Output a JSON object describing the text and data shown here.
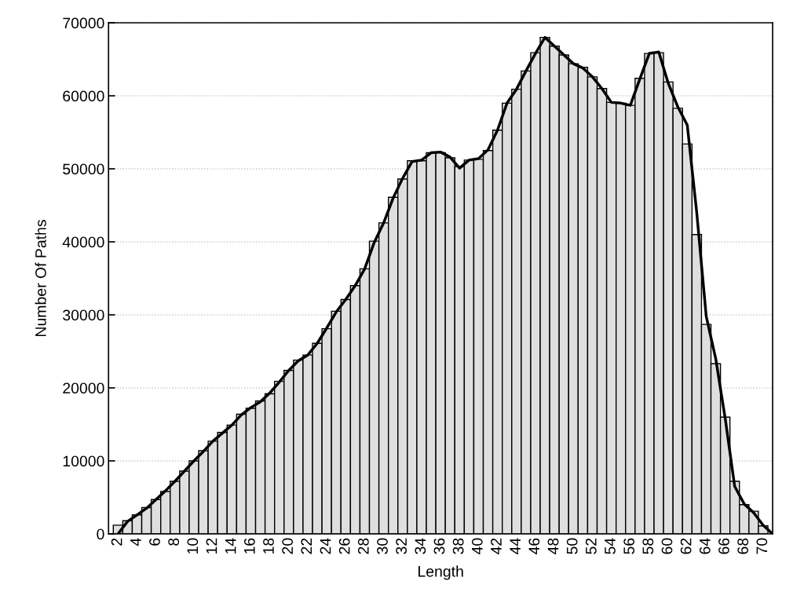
{
  "chart_data": {
    "type": "bar",
    "xlabel": "Length",
    "ylabel": "Number Of Paths",
    "x": [
      2,
      3,
      4,
      5,
      6,
      7,
      8,
      9,
      10,
      11,
      12,
      13,
      14,
      15,
      16,
      17,
      18,
      19,
      20,
      21,
      22,
      23,
      24,
      25,
      26,
      27,
      28,
      29,
      30,
      31,
      32,
      33,
      34,
      35,
      36,
      37,
      38,
      39,
      40,
      41,
      42,
      43,
      44,
      45,
      46,
      47,
      48,
      49,
      50,
      51,
      52,
      53,
      54,
      55,
      56,
      57,
      58,
      59,
      60,
      61,
      62,
      63,
      64,
      65,
      66,
      67,
      68,
      69,
      70
    ],
    "series": [
      {
        "color": "#dfdfdf",
        "values": [
          1200,
          1800,
          2600,
          3600,
          4700,
          5800,
          7200,
          8600,
          10000,
          11400,
          12700,
          13900,
          14900,
          16400,
          17200,
          18200,
          19200,
          20900,
          22400,
          23800,
          24500,
          26100,
          28100,
          30500,
          32100,
          34000,
          36300,
          40100,
          42600,
          46100,
          48600,
          51100,
          51100,
          52200,
          52200,
          51500,
          50300,
          51200,
          51300,
          52500,
          55300,
          59000,
          60900,
          63400,
          65900,
          68000,
          66800,
          65600,
          64400,
          63900,
          62600,
          61000,
          59100,
          59000,
          58700,
          62400,
          65800,
          65900,
          61900,
          58300,
          53400,
          41000,
          28700,
          23300,
          16000,
          7200,
          4000,
          3100,
          1100
        ]
      },
      {
        "type": "line",
        "color": "#000000",
        "x": [
          2,
          3,
          4,
          5,
          6,
          7,
          8,
          9,
          10,
          11,
          12,
          13,
          14,
          15,
          16,
          17,
          18,
          19,
          20,
          21,
          22,
          23,
          24,
          25,
          26,
          27,
          28,
          29,
          30,
          31,
          32,
          33,
          34,
          35,
          36,
          37,
          38,
          39,
          40,
          41,
          42,
          43,
          44,
          45,
          46,
          47,
          48,
          49,
          50,
          51,
          52,
          53,
          54,
          55,
          56,
          57,
          58,
          59,
          60,
          61,
          62,
          63,
          64,
          65,
          66,
          67,
          68,
          69,
          70,
          71
        ],
        "values": [
          0,
          1700,
          2600,
          3500,
          4700,
          5900,
          7200,
          8600,
          10000,
          11300,
          12700,
          13800,
          14900,
          16300,
          17300,
          18100,
          19300,
          20800,
          22400,
          23700,
          24500,
          26100,
          28200,
          30400,
          32100,
          34000,
          36300,
          39900,
          42600,
          46000,
          48700,
          51000,
          51200,
          52200,
          52300,
          51600,
          50100,
          51200,
          51400,
          52600,
          55300,
          59000,
          60900,
          63400,
          65800,
          68000,
          66800,
          65600,
          64400,
          63800,
          62600,
          61000,
          59100,
          59000,
          58700,
          62300,
          65800,
          66000,
          61700,
          58500,
          56000,
          44000,
          29800,
          24000,
          15800,
          6500,
          4100,
          2900,
          1180,
          0
        ]
      }
    ],
    "xlim": [
      1,
      71
    ],
    "xticks": [
      2,
      4,
      6,
      8,
      10,
      12,
      14,
      16,
      18,
      20,
      22,
      24,
      26,
      28,
      30,
      32,
      34,
      36,
      38,
      40,
      42,
      44,
      46,
      48,
      50,
      52,
      54,
      56,
      58,
      60,
      62,
      64,
      66,
      68,
      70
    ],
    "ylim": [
      0,
      70000
    ],
    "yticks": [
      0,
      10000,
      20000,
      30000,
      40000,
      50000,
      60000,
      70000
    ],
    "grid": "y"
  }
}
